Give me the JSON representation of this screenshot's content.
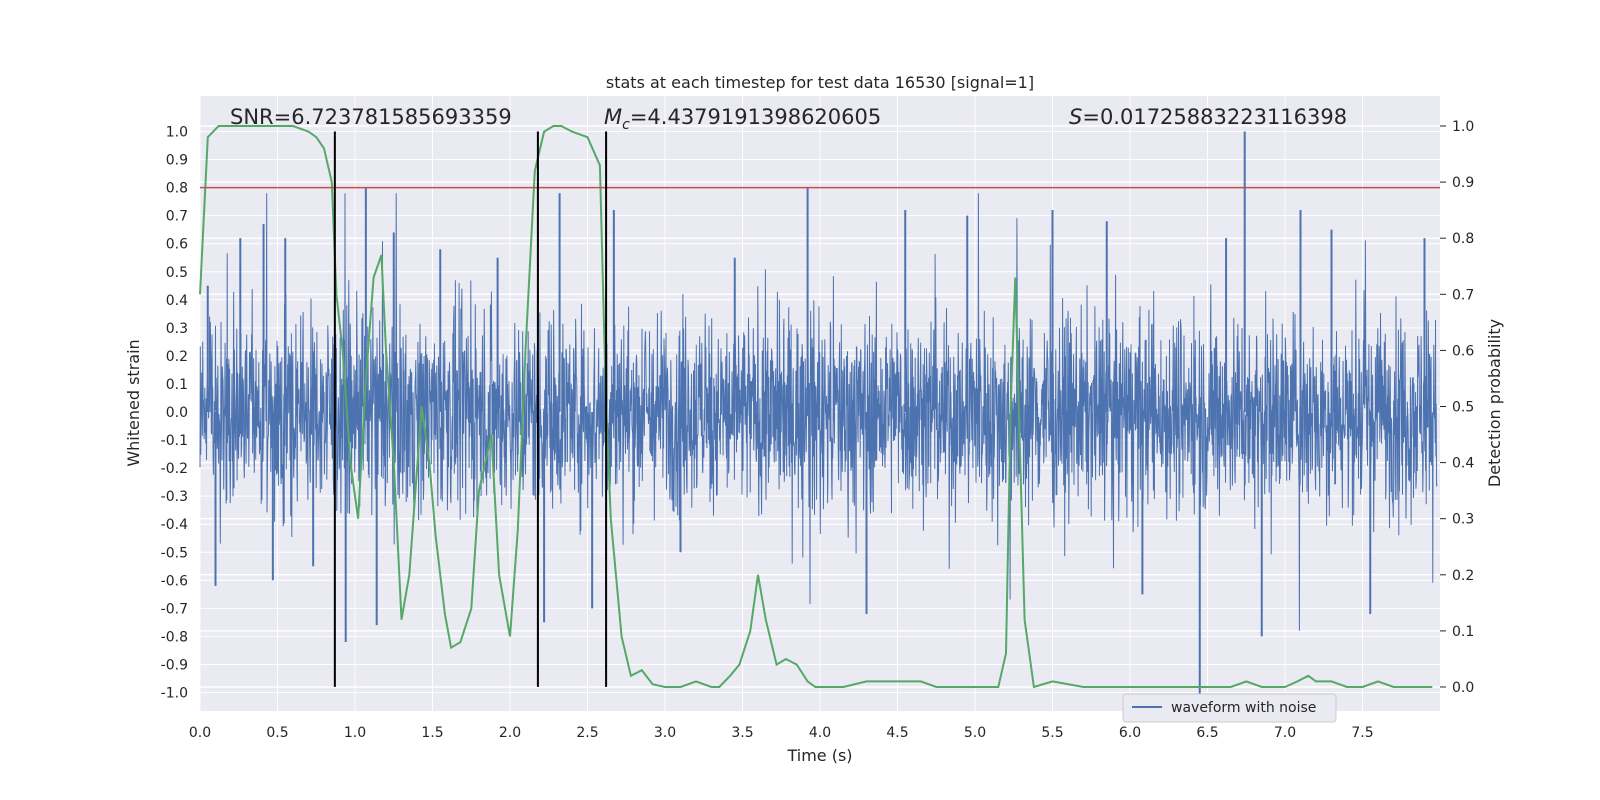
{
  "chart_data": {
    "type": "line",
    "title": "stats at each timestep for test data 16530 [signal=1]",
    "xlabel": "Time (s)",
    "ylabel": "Whitened strain",
    "y2label": "Detection probability",
    "xlim": [
      0.0,
      8.0
    ],
    "ylim": [
      -1.1,
      1.1
    ],
    "y2lim": [
      -0.05,
      1.05
    ],
    "xticks": [
      "0.0",
      "0.5",
      "1.0",
      "1.5",
      "2.0",
      "2.5",
      "3.0",
      "3.5",
      "4.0",
      "4.5",
      "5.0",
      "5.5",
      "6.0",
      "6.5",
      "7.0",
      "7.5"
    ],
    "yticks": [
      "1.0",
      "0.9",
      "0.8",
      "0.7",
      "0.6",
      "0.5",
      "0.4",
      "0.3",
      "0.2",
      "0.1",
      "0.0",
      "-0.1",
      "-0.2",
      "-0.3",
      "-0.4",
      "-0.5",
      "-0.6",
      "-0.7",
      "-0.8",
      "-0.9",
      "-1.0"
    ],
    "y2ticks": [
      "1.0",
      "0.9",
      "0.8",
      "0.7",
      "0.6",
      "0.5",
      "0.4",
      "0.3",
      "0.2",
      "0.1",
      "0.0"
    ],
    "grid": true,
    "legend_position": "lower-right",
    "annotations": {
      "snr": "SNR=6.723781585693359",
      "mc_symbol": "M",
      "mc_sub": "c",
      "mc_value": "=4.4379191398620605",
      "s_symbol": "S",
      "s_value": "=0.01725883223116398"
    },
    "threshold": {
      "y": 0.8,
      "color": "#c44e52"
    },
    "vertical_lines": [
      0.87,
      2.18,
      2.62
    ],
    "series": [
      {
        "name": "waveform with noise",
        "axis": "left",
        "color": "#4c72b0",
        "envelope_note": "dense noise, typical amplitude ±0.35, extremes about ±1.0",
        "spikes": [
          {
            "x": 0.05,
            "y": 0.45
          },
          {
            "x": 0.1,
            "y": -0.62
          },
          {
            "x": 0.26,
            "y": 0.62
          },
          {
            "x": 0.41,
            "y": 0.67
          },
          {
            "x": 0.47,
            "y": -0.6
          },
          {
            "x": 0.55,
            "y": 0.62
          },
          {
            "x": 0.73,
            "y": -0.55
          },
          {
            "x": 0.94,
            "y": -0.82
          },
          {
            "x": 1.07,
            "y": 0.8
          },
          {
            "x": 1.14,
            "y": -0.76
          },
          {
            "x": 1.25,
            "y": 0.64
          },
          {
            "x": 1.55,
            "y": 0.58
          },
          {
            "x": 1.92,
            "y": 0.55
          },
          {
            "x": 2.22,
            "y": -0.75
          },
          {
            "x": 2.32,
            "y": 0.78
          },
          {
            "x": 2.53,
            "y": -0.7
          },
          {
            "x": 2.67,
            "y": 0.72
          },
          {
            "x": 3.1,
            "y": -0.5
          },
          {
            "x": 3.45,
            "y": 0.55
          },
          {
            "x": 3.92,
            "y": 0.8
          },
          {
            "x": 4.3,
            "y": -0.72
          },
          {
            "x": 4.55,
            "y": 0.72
          },
          {
            "x": 4.95,
            "y": 0.7
          },
          {
            "x": 5.5,
            "y": 0.72
          },
          {
            "x": 5.85,
            "y": 0.68
          },
          {
            "x": 6.08,
            "y": -0.65
          },
          {
            "x": 6.45,
            "y": -1.05
          },
          {
            "x": 6.62,
            "y": 0.62
          },
          {
            "x": 6.74,
            "y": 1.0
          },
          {
            "x": 6.85,
            "y": -0.8
          },
          {
            "x": 7.1,
            "y": 0.72
          },
          {
            "x": 7.3,
            "y": 0.65
          },
          {
            "x": 7.55,
            "y": -0.72
          },
          {
            "x": 7.9,
            "y": 0.62
          }
        ]
      },
      {
        "name": "",
        "axis": "right",
        "color": "#55a868",
        "x": [
          0.0,
          0.05,
          0.12,
          0.2,
          0.3,
          0.4,
          0.5,
          0.6,
          0.7,
          0.75,
          0.8,
          0.85,
          0.88,
          0.92,
          0.97,
          1.02,
          1.07,
          1.12,
          1.17,
          1.2,
          1.25,
          1.3,
          1.35,
          1.43,
          1.48,
          1.52,
          1.58,
          1.62,
          1.68,
          1.75,
          1.8,
          1.88,
          1.93,
          2.0,
          2.05,
          2.1,
          2.16,
          2.22,
          2.28,
          2.33,
          2.4,
          2.5,
          2.58,
          2.62,
          2.65,
          2.72,
          2.78,
          2.85,
          2.92,
          3.0,
          3.1,
          3.2,
          3.3,
          3.35,
          3.42,
          3.48,
          3.55,
          3.6,
          3.65,
          3.72,
          3.78,
          3.85,
          3.92,
          3.97,
          4.05,
          4.15,
          4.3,
          4.45,
          4.55,
          4.65,
          4.75,
          4.85,
          4.95,
          5.05,
          5.15,
          5.2,
          5.23,
          5.26,
          5.32,
          5.38,
          5.5,
          5.7,
          6.0,
          6.5,
          6.65,
          6.75,
          6.85,
          7.0,
          7.08,
          7.15,
          7.2,
          7.3,
          7.4,
          7.5,
          7.6,
          7.7,
          7.8,
          7.95
        ],
        "values": [
          0.7,
          0.98,
          1.0,
          1.0,
          1.0,
          1.0,
          1.0,
          1.0,
          0.99,
          0.98,
          0.96,
          0.9,
          0.7,
          0.6,
          0.4,
          0.3,
          0.55,
          0.73,
          0.77,
          0.6,
          0.4,
          0.12,
          0.2,
          0.5,
          0.4,
          0.27,
          0.13,
          0.07,
          0.08,
          0.14,
          0.35,
          0.45,
          0.2,
          0.09,
          0.28,
          0.6,
          0.92,
          0.99,
          1.0,
          1.0,
          0.99,
          0.98,
          0.93,
          0.5,
          0.3,
          0.09,
          0.02,
          0.03,
          0.005,
          0.0,
          0.0,
          0.01,
          0.0,
          0.0,
          0.02,
          0.04,
          0.1,
          0.2,
          0.12,
          0.04,
          0.05,
          0.04,
          0.01,
          0.0,
          0.0,
          0.0,
          0.01,
          0.01,
          0.01,
          0.01,
          0.0,
          0.0,
          0.0,
          0.0,
          0.0,
          0.06,
          0.5,
          0.73,
          0.12,
          0.0,
          0.01,
          0.0,
          0.0,
          0.0,
          0.0,
          0.01,
          0.0,
          0.0,
          0.01,
          0.02,
          0.01,
          0.01,
          0.0,
          0.0,
          0.01,
          0.0,
          0.0,
          0.0
        ]
      }
    ]
  }
}
